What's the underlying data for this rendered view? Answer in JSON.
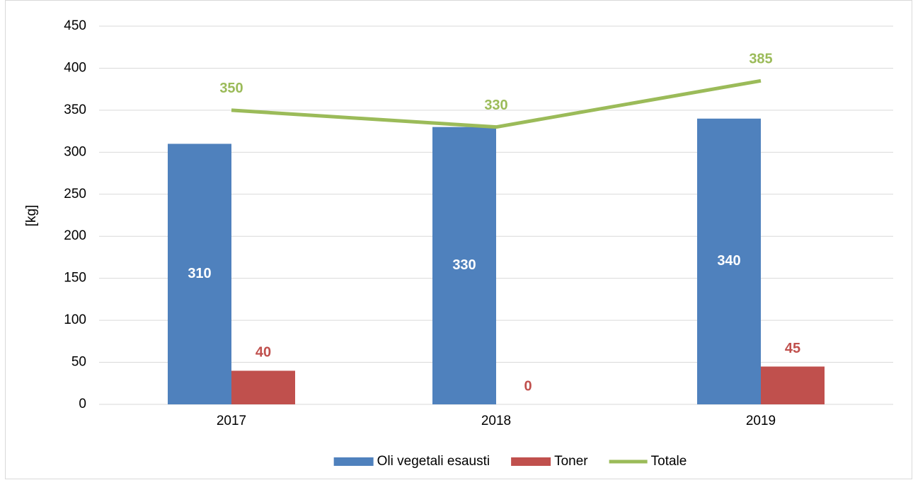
{
  "chart_data": {
    "type": "bar",
    "y_label": "[kg]",
    "categories": [
      "2017",
      "2018",
      "2019"
    ],
    "series": [
      {
        "name": "Oli vegetali esausti",
        "color": "#4f81bd",
        "values": [
          310,
          330,
          340
        ]
      },
      {
        "name": "Toner",
        "color": "#c0504d",
        "values": [
          40,
          0,
          45
        ]
      },
      {
        "name": "Totale",
        "color": "#9bbb59",
        "type": "line",
        "values": [
          350,
          330,
          385
        ]
      }
    ],
    "ylim": [
      0,
      450
    ],
    "yticks": [
      0,
      50,
      100,
      150,
      200,
      250,
      300,
      350,
      400,
      450
    ],
    "grid": true,
    "legend": "bottom"
  }
}
